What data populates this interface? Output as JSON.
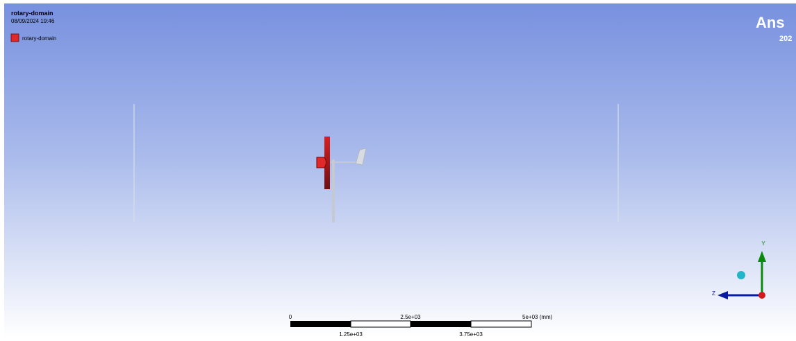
{
  "header": {
    "title": "rotary-domain",
    "timestamp": "08/09/2024 19:46"
  },
  "legend": {
    "label": "rotary-domain"
  },
  "logo": {
    "brand": "Ans",
    "year": "202"
  },
  "scale_bar": {
    "top_labels": [
      "0",
      "2.5e+03",
      "5e+03 (mm)"
    ],
    "bottom_labels": [
      "1.25e+03",
      "3.75e+03"
    ]
  },
  "triad": {
    "y_label": "Y",
    "z_label": "Z"
  }
}
